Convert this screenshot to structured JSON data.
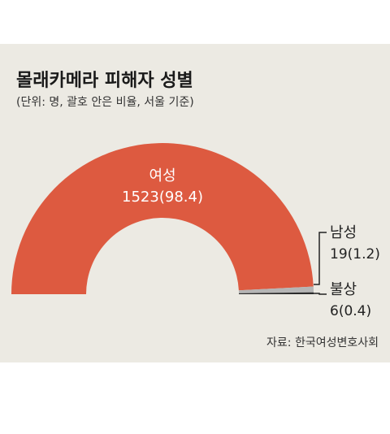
{
  "chart_data": {
    "type": "pie",
    "variant": "half-donut",
    "title": "몰래카메라 피해자 성별",
    "subtitle": "(단위: 명, 괄호 안은 비율, 서울 기준)",
    "source": "자료: 한국여성변호사회",
    "slices": [
      {
        "name": "여성",
        "value": 1523,
        "percent": "98.4",
        "value_label": "1523(98.4)",
        "color": "#dd5a40"
      },
      {
        "name": "남성",
        "value": 19,
        "percent": "1.2",
        "value_label": "19(1.2)",
        "color": "#b5b5b5"
      },
      {
        "name": "불상",
        "value": 6,
        "percent": "0.4",
        "value_label": "6(0.4)",
        "color": "#2b2b2b"
      }
    ]
  },
  "colors": {
    "background": "#eceae3",
    "title": "#1a1a1a",
    "text": "#222222",
    "leader": "#222222",
    "inner_label": "#ffffff"
  }
}
